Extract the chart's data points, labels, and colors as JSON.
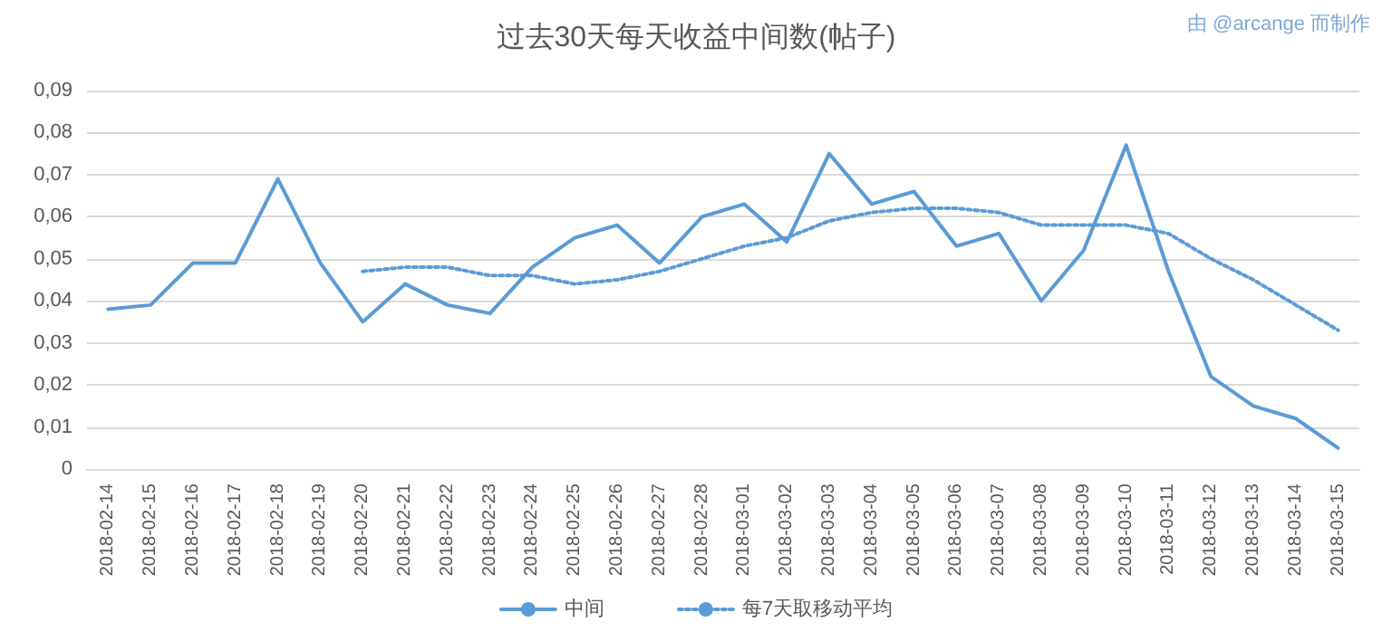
{
  "chart_data": {
    "type": "line",
    "title": "过去30天每天收益中间数(帖子)",
    "annotations": [
      "由 @arcange 而制作"
    ],
    "categories": [
      "2018-02-14",
      "2018-02-15",
      "2018-02-16",
      "2018-02-17",
      "2018-02-18",
      "2018-02-19",
      "2018-02-20",
      "2018-02-21",
      "2018-02-22",
      "2018-02-23",
      "2018-02-24",
      "2018-02-25",
      "2018-02-26",
      "2018-02-27",
      "2018-02-28",
      "2018-03-01",
      "2018-03-02",
      "2018-03-03",
      "2018-03-04",
      "2018-03-05",
      "2018-03-06",
      "2018-03-07",
      "2018-03-08",
      "2018-03-09",
      "2018-03-10",
      "2018-03-11",
      "2018-03-12",
      "2018-03-13",
      "2018-03-14",
      "2018-03-15"
    ],
    "series": [
      {
        "name": "中间",
        "color": "#5b9bd5",
        "line_style": "solid",
        "values": [
          0.038,
          0.039,
          0.049,
          0.049,
          0.069,
          0.049,
          0.035,
          0.044,
          0.039,
          0.037,
          0.048,
          0.055,
          0.058,
          0.049,
          0.06,
          0.063,
          0.054,
          0.075,
          0.063,
          0.066,
          0.053,
          0.056,
          0.04,
          0.052,
          0.077,
          0.047,
          0.022,
          0.015,
          0.012,
          0.005
        ]
      },
      {
        "name": "每7天取移动平均",
        "color": "#5b9bd5",
        "line_style": "dotted",
        "values": [
          null,
          null,
          null,
          null,
          null,
          null,
          0.047,
          0.048,
          0.048,
          0.046,
          0.046,
          0.044,
          0.045,
          0.047,
          0.05,
          0.053,
          0.055,
          0.059,
          0.061,
          0.062,
          0.062,
          0.061,
          0.058,
          0.058,
          0.058,
          0.056,
          0.05,
          0.045,
          0.039,
          0.033
        ]
      }
    ],
    "ylim": [
      0,
      0.09
    ],
    "yticks": [
      {
        "value": 0,
        "label": "0"
      },
      {
        "value": 0.01,
        "label": "0,01"
      },
      {
        "value": 0.02,
        "label": "0,02"
      },
      {
        "value": 0.03,
        "label": "0,03"
      },
      {
        "value": 0.04,
        "label": "0,04"
      },
      {
        "value": 0.05,
        "label": "0,05"
      },
      {
        "value": 0.06,
        "label": "0,06"
      },
      {
        "value": 0.07,
        "label": "0,07"
      },
      {
        "value": 0.08,
        "label": "0,08"
      },
      {
        "value": 0.09,
        "label": "0,09"
      }
    ],
    "grid": "y",
    "legend": "bottom",
    "marker": "none"
  }
}
